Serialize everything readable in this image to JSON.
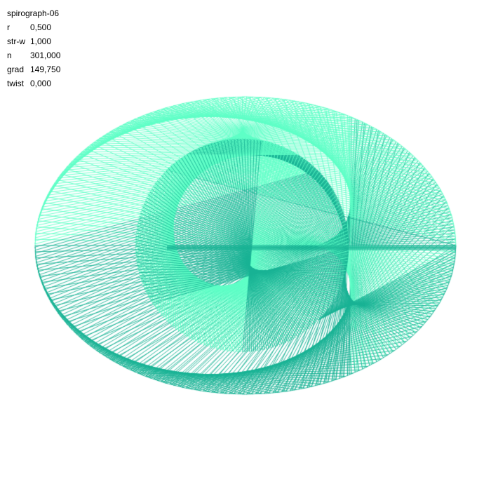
{
  "title": "spirograph-06",
  "params": [
    {
      "key": "r",
      "value": "0,500"
    },
    {
      "key": "str-w",
      "value": "1,000"
    },
    {
      "key": "n",
      "value": "301,000"
    },
    {
      "key": "grad",
      "value": "149,750"
    },
    {
      "key": "twist",
      "value": "0,000"
    }
  ],
  "colors": {
    "background": "#ffffff",
    "text": "#000000",
    "light_stroke": "#5effc6",
    "dark_stroke": "#17b294"
  }
}
